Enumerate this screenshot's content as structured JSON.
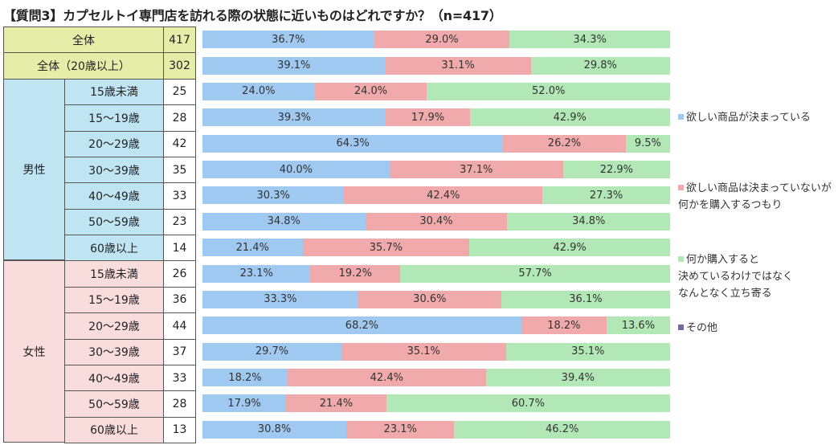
{
  "title": "【質問3】カプセルトイ専門店を訪れる際の状態に近いものはどれですか？（n=417）",
  "colors": {
    "blue": "#9fc9f1",
    "red": "#f0aaab",
    "green": "#b2e8b6",
    "purple": "#8064a2",
    "total_bg": "#e6eda8",
    "male_bg": "#bfe5f3",
    "female_bg": "#f9dcdc"
  },
  "groups": {
    "male": "男性",
    "female": "女性"
  },
  "legend": [
    {
      "lines": [
        "欲しい商品が決まっている"
      ],
      "color": "#9fc9f1"
    },
    {
      "lines": [
        "欲しい商品は決まっていないが",
        "何かを購入するつもり"
      ],
      "color": "#f0aaab"
    },
    {
      "lines": [
        "何か購入すると",
        "決めているわけではなく",
        "なんとなく立ち寄る"
      ],
      "color": "#b2e8b6"
    },
    {
      "lines": [
        "その他"
      ],
      "color": "#8064a2"
    }
  ],
  "chart_data": {
    "type": "bar",
    "orientation": "horizontal",
    "stacked": true,
    "percent_stacked": true,
    "title": "【質問3】カプセルトイ専門店を訪れる際の状態に近いものはどれですか？（n=417）",
    "categories": [
      {
        "group": "",
        "label": "全体",
        "n": "417"
      },
      {
        "group": "",
        "label": "全体（20歳以上）",
        "n": "302"
      },
      {
        "group": "男性",
        "label": "15歳未満",
        "n": "25"
      },
      {
        "group": "男性",
        "label": "15～19歳",
        "n": "28"
      },
      {
        "group": "男性",
        "label": "20～29歳",
        "n": "42"
      },
      {
        "group": "男性",
        "label": "30～39歳",
        "n": "35"
      },
      {
        "group": "男性",
        "label": "40～49歳",
        "n": "33"
      },
      {
        "group": "男性",
        "label": "50～59歳",
        "n": "23"
      },
      {
        "group": "男性",
        "label": "60歳以上",
        "n": "14"
      },
      {
        "group": "女性",
        "label": "15歳未満",
        "n": "26"
      },
      {
        "group": "女性",
        "label": "15～19歳",
        "n": "36"
      },
      {
        "group": "女性",
        "label": "20～29歳",
        "n": "44"
      },
      {
        "group": "女性",
        "label": "30～39歳",
        "n": "37"
      },
      {
        "group": "女性",
        "label": "40～49歳",
        "n": "33"
      },
      {
        "group": "女性",
        "label": "50～59歳",
        "n": "28"
      },
      {
        "group": "女性",
        "label": "60歳以上",
        "n": "13"
      }
    ],
    "series": [
      {
        "name": "欲しい商品が決まっている",
        "color": "#9fc9f1",
        "values": [
          36.7,
          39.1,
          24.0,
          39.3,
          64.3,
          40.0,
          30.3,
          34.8,
          21.4,
          23.1,
          33.3,
          68.2,
          29.7,
          18.2,
          17.9,
          30.8
        ]
      },
      {
        "name": "欲しい商品は決まっていないが何かを購入するつもり",
        "color": "#f0aaab",
        "values": [
          29.0,
          31.1,
          24.0,
          17.9,
          26.2,
          37.1,
          42.4,
          30.4,
          35.7,
          19.2,
          30.6,
          18.2,
          35.1,
          42.4,
          21.4,
          23.1
        ]
      },
      {
        "name": "何か購入すると決めているわけではなくなんとなく立ち寄る",
        "color": "#b2e8b6",
        "values": [
          34.3,
          29.8,
          52.0,
          42.9,
          9.5,
          22.9,
          27.3,
          34.8,
          42.9,
          57.7,
          36.1,
          13.6,
          35.1,
          39.4,
          60.7,
          46.2
        ]
      },
      {
        "name": "その他",
        "color": "#8064a2",
        "values": [
          0,
          0,
          0,
          0,
          0,
          0,
          0,
          0,
          0,
          0,
          0,
          0,
          0,
          0,
          0,
          0
        ]
      }
    ],
    "labels": [
      [
        "36.7%",
        "29.0%",
        "34.3%"
      ],
      [
        "39.1%",
        "31.1%",
        "29.8%"
      ],
      [
        "24.0%",
        "24.0%",
        "52.0%"
      ],
      [
        "39.3%",
        "17.9%",
        "42.9%"
      ],
      [
        "64.3%",
        "26.2%",
        "9.5%"
      ],
      [
        "40.0%",
        "37.1%",
        "22.9%"
      ],
      [
        "30.3%",
        "42.4%",
        "27.3%"
      ],
      [
        "34.8%",
        "30.4%",
        "34.8%"
      ],
      [
        "21.4%",
        "35.7%",
        "42.9%"
      ],
      [
        "23.1%",
        "19.2%",
        "57.7%"
      ],
      [
        "33.3%",
        "30.6%",
        "36.1%"
      ],
      [
        "68.2%",
        "18.2%",
        "13.6%"
      ],
      [
        "29.7%",
        "35.1%",
        "35.1%"
      ],
      [
        "18.2%",
        "42.4%",
        "39.4%"
      ],
      [
        "17.9%",
        "21.4%",
        "60.7%"
      ],
      [
        "30.8%",
        "23.1%",
        "46.2%"
      ]
    ],
    "xlim": [
      0,
      100
    ]
  }
}
